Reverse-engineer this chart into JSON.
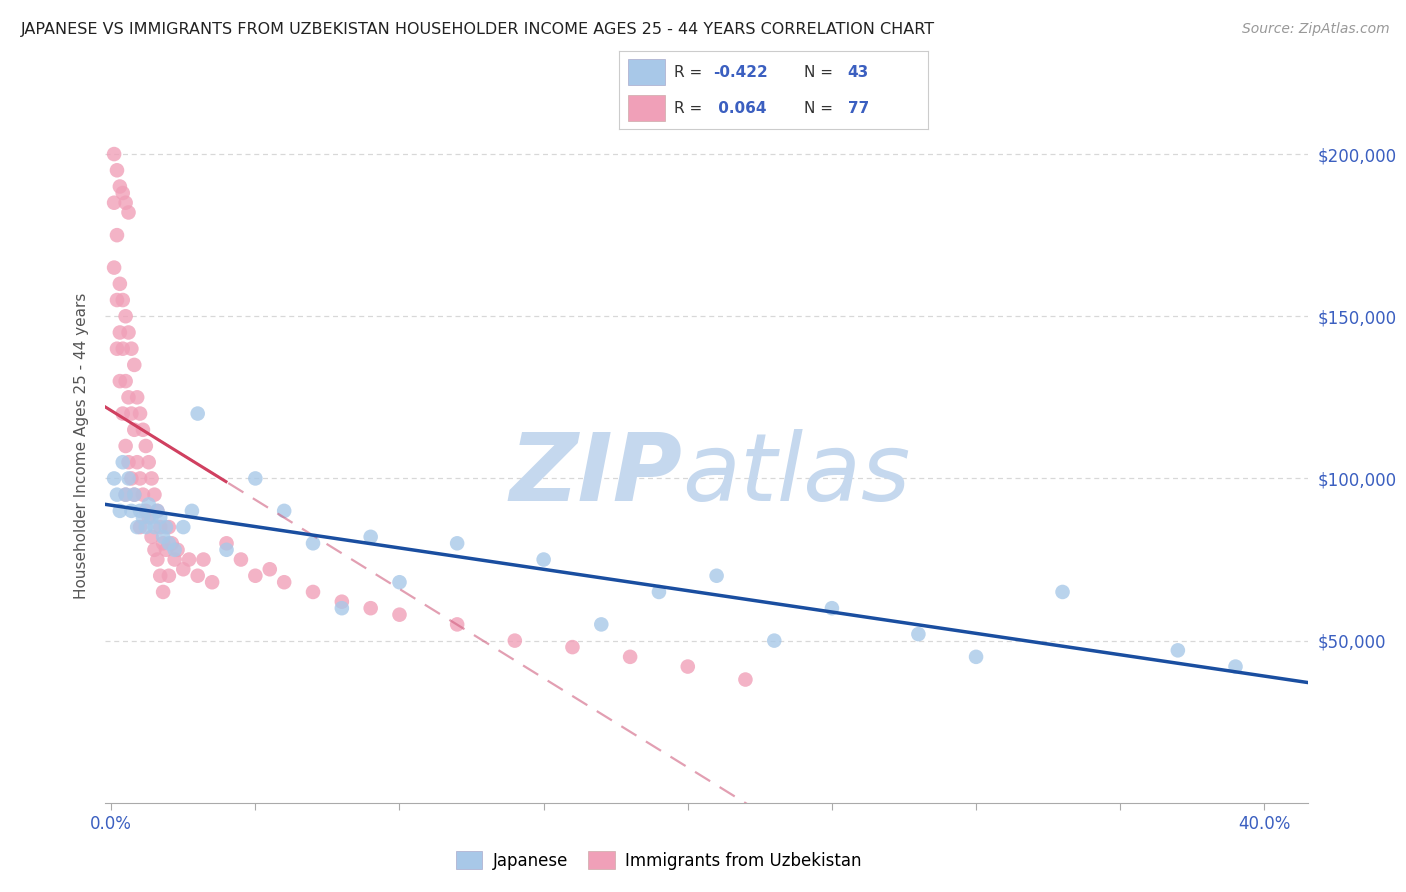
{
  "title": "JAPANESE VS IMMIGRANTS FROM UZBEKISTAN HOUSEHOLDER INCOME AGES 25 - 44 YEARS CORRELATION CHART",
  "source": "Source: ZipAtlas.com",
  "ylabel": "Householder Income Ages 25 - 44 years",
  "yaxis_labels": [
    "$50,000",
    "$100,000",
    "$150,000",
    "$200,000"
  ],
  "yaxis_values": [
    50000,
    100000,
    150000,
    200000
  ],
  "ylim": [
    0,
    220000
  ],
  "xlim": [
    -0.002,
    0.415
  ],
  "blue_scatter_color": "#a8c8e8",
  "pink_scatter_color": "#f0a0b8",
  "blue_line_color": "#1a4ea0",
  "pink_solid_color": "#d04060",
  "pink_dash_color": "#d06080",
  "watermark_zip_color": "#c5d8ee",
  "watermark_atlas_color": "#c5d8ee",
  "bg_color": "#ffffff",
  "grid_color": "#d8d8d8",
  "right_label_color": "#3b5fc0",
  "title_color": "#222222",
  "source_color": "#999999",
  "label_color": "#555555",
  "tick_label_color": "#3b5fc0",
  "legend_r_color": "#3b5fc0",
  "legend_text_color": "#333333",
  "jap_x": [
    0.001,
    0.002,
    0.003,
    0.004,
    0.005,
    0.006,
    0.007,
    0.008,
    0.009,
    0.01,
    0.011,
    0.012,
    0.013,
    0.014,
    0.015,
    0.016,
    0.017,
    0.018,
    0.019,
    0.02,
    0.022,
    0.025,
    0.028,
    0.03,
    0.04,
    0.05,
    0.06,
    0.07,
    0.08,
    0.09,
    0.1,
    0.12,
    0.15,
    0.17,
    0.19,
    0.21,
    0.23,
    0.25,
    0.28,
    0.3,
    0.33,
    0.37,
    0.39
  ],
  "jap_y": [
    100000,
    95000,
    90000,
    105000,
    95000,
    100000,
    90000,
    95000,
    85000,
    90000,
    88000,
    85000,
    92000,
    88000,
    85000,
    90000,
    88000,
    82000,
    85000,
    80000,
    78000,
    85000,
    90000,
    120000,
    78000,
    100000,
    90000,
    80000,
    60000,
    82000,
    68000,
    80000,
    75000,
    55000,
    65000,
    70000,
    50000,
    60000,
    52000,
    45000,
    65000,
    47000,
    42000
  ],
  "uzb_x": [
    0.001,
    0.001,
    0.002,
    0.002,
    0.002,
    0.003,
    0.003,
    0.003,
    0.004,
    0.004,
    0.004,
    0.005,
    0.005,
    0.005,
    0.005,
    0.006,
    0.006,
    0.006,
    0.007,
    0.007,
    0.007,
    0.008,
    0.008,
    0.008,
    0.009,
    0.009,
    0.01,
    0.01,
    0.01,
    0.011,
    0.011,
    0.012,
    0.012,
    0.013,
    0.013,
    0.014,
    0.014,
    0.015,
    0.015,
    0.016,
    0.016,
    0.017,
    0.017,
    0.018,
    0.018,
    0.019,
    0.02,
    0.02,
    0.021,
    0.022,
    0.023,
    0.025,
    0.027,
    0.03,
    0.032,
    0.035,
    0.04,
    0.045,
    0.05,
    0.055,
    0.06,
    0.07,
    0.08,
    0.09,
    0.1,
    0.12,
    0.14,
    0.16,
    0.18,
    0.2,
    0.22,
    0.001,
    0.002,
    0.003,
    0.004,
    0.005,
    0.006
  ],
  "uzb_y": [
    185000,
    165000,
    175000,
    155000,
    140000,
    160000,
    145000,
    130000,
    155000,
    140000,
    120000,
    150000,
    130000,
    110000,
    95000,
    145000,
    125000,
    105000,
    140000,
    120000,
    100000,
    135000,
    115000,
    95000,
    125000,
    105000,
    120000,
    100000,
    85000,
    115000,
    95000,
    110000,
    90000,
    105000,
    88000,
    100000,
    82000,
    95000,
    78000,
    90000,
    75000,
    85000,
    70000,
    80000,
    65000,
    78000,
    85000,
    70000,
    80000,
    75000,
    78000,
    72000,
    75000,
    70000,
    75000,
    68000,
    80000,
    75000,
    70000,
    72000,
    68000,
    65000,
    62000,
    60000,
    58000,
    55000,
    50000,
    48000,
    45000,
    42000,
    38000,
    200000,
    195000,
    190000,
    188000,
    185000,
    182000
  ]
}
